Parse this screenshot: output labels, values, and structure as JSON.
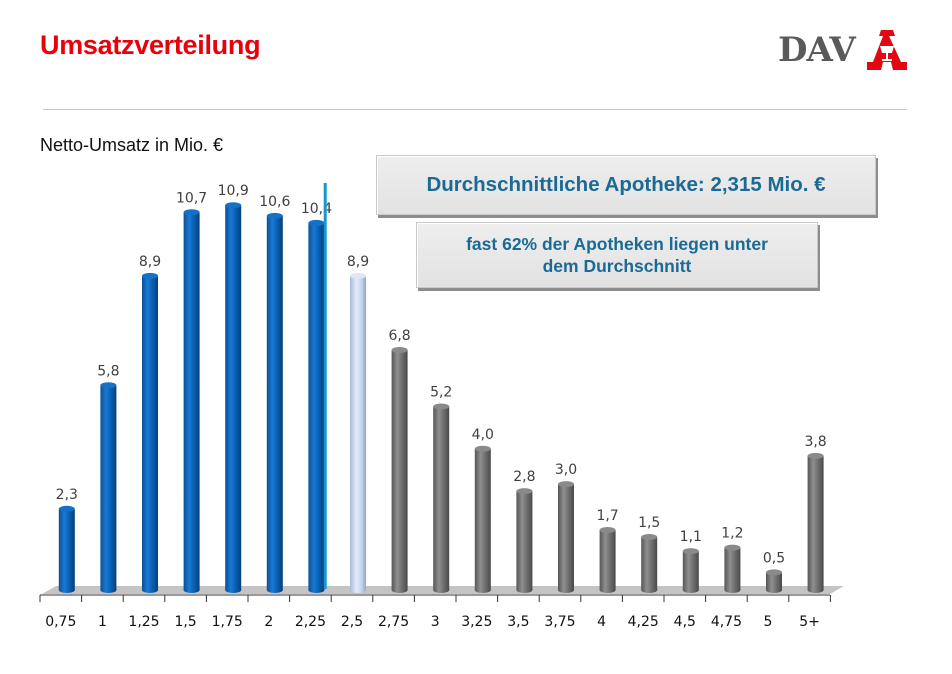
{
  "header": {
    "title": "Umsatzverteilung",
    "logo_text": "DAV",
    "logo_icon": "apotheke-a-icon"
  },
  "annotations": {
    "average_box": "Durchschnittliche Apotheke: 2,315 Mio. €",
    "below_average_line1": "fast 62% der Apotheken liegen unter",
    "below_average_line2": "dem Durchschnitt"
  },
  "colors": {
    "title": "#e8000b",
    "below_average_bars": "#0b63b8",
    "average_bar": "#c7d6f2",
    "above_average_bars": "#7a7a7a",
    "average_marker": "#1597d1",
    "box_text": "#1b6a95"
  },
  "chart_data": {
    "type": "bar",
    "title": "Umsatzverteilung",
    "ylabel": "Netto-Umsatz in Mio. €",
    "xlabel": "",
    "categories": [
      "0,75",
      "1",
      "1,25",
      "1,5",
      "1,75",
      "2",
      "2,25",
      "2,5",
      "2,75",
      "3",
      "3,25",
      "3,5",
      "3,75",
      "4",
      "4,25",
      "4,5",
      "4,75",
      "5",
      "5+"
    ],
    "values": [
      2.3,
      5.8,
      8.9,
      10.7,
      10.9,
      10.6,
      10.4,
      8.9,
      6.8,
      5.2,
      4.0,
      2.8,
      3.0,
      1.7,
      1.5,
      1.1,
      1.2,
      0.5,
      3.8
    ],
    "value_labels": [
      "2,3",
      "5,8",
      "8,9",
      "10,7",
      "10,9",
      "10,6",
      "10,4",
      "8,9",
      "6,8",
      "5,2",
      "4,0",
      "2,8",
      "3,0",
      "1,7",
      "1,5",
      "1,1",
      "1,2",
      "0,5",
      "3,8"
    ],
    "groups": [
      "below",
      "below",
      "below",
      "below",
      "below",
      "below",
      "below",
      "average",
      "above",
      "above",
      "above",
      "above",
      "above",
      "above",
      "above",
      "above",
      "above",
      "above",
      "above"
    ],
    "average_marker": {
      "value": 2.315,
      "between": [
        "2,25",
        "2,5"
      ]
    },
    "ylim": [
      0,
      12
    ],
    "grid": false,
    "legend": "none",
    "bar_style": "3d-cylinder"
  }
}
